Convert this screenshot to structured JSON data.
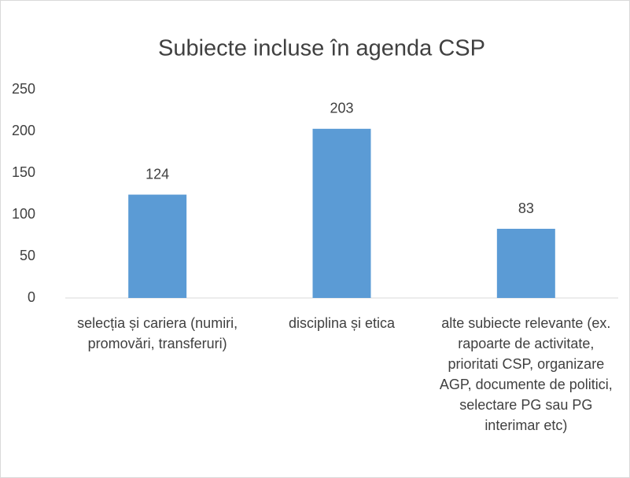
{
  "chart_data": {
    "type": "bar",
    "title": "Subiecte incluse în agenda CSP",
    "categories": [
      "selecția și cariera (numiri, promovări, transferuri)",
      "disciplina și etica",
      "alte subiecte relevante (ex. rapoarte de activitate, prioritati CSP, organizare AGP, documente de politici, selectare PG sau PG interimar etc)"
    ],
    "values": [
      124,
      203,
      83
    ],
    "color": "#5b9bd5",
    "ylim": [
      0,
      250
    ],
    "yticks": [
      0,
      50,
      100,
      150,
      200,
      250
    ],
    "grid": false
  }
}
